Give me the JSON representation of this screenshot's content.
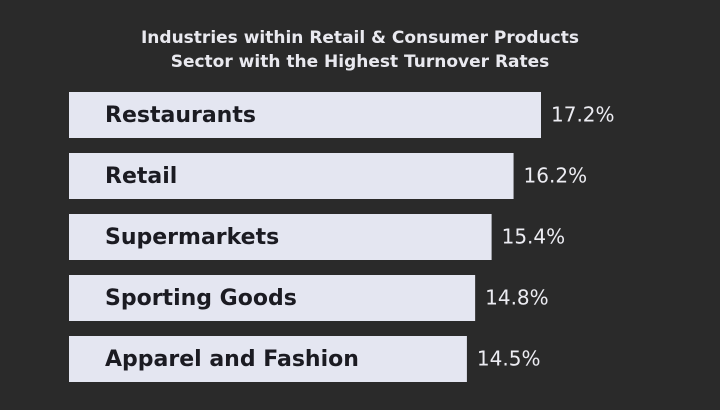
{
  "chart_data": {
    "type": "bar",
    "orientation": "horizontal",
    "title": "Industries within Retail & Consumer Products Sector with the Highest Turnover Rates",
    "categories": [
      "Restaurants",
      "Retail",
      "Supermarkets",
      "Sporting Goods",
      "Apparel and Fashion"
    ],
    "values": [
      17.2,
      16.2,
      15.4,
      14.8,
      14.5
    ],
    "value_labels": [
      "17.2%",
      "16.2%",
      "15.4%",
      "14.8%",
      "14.5%"
    ],
    "color": "#e4e6f1"
  }
}
